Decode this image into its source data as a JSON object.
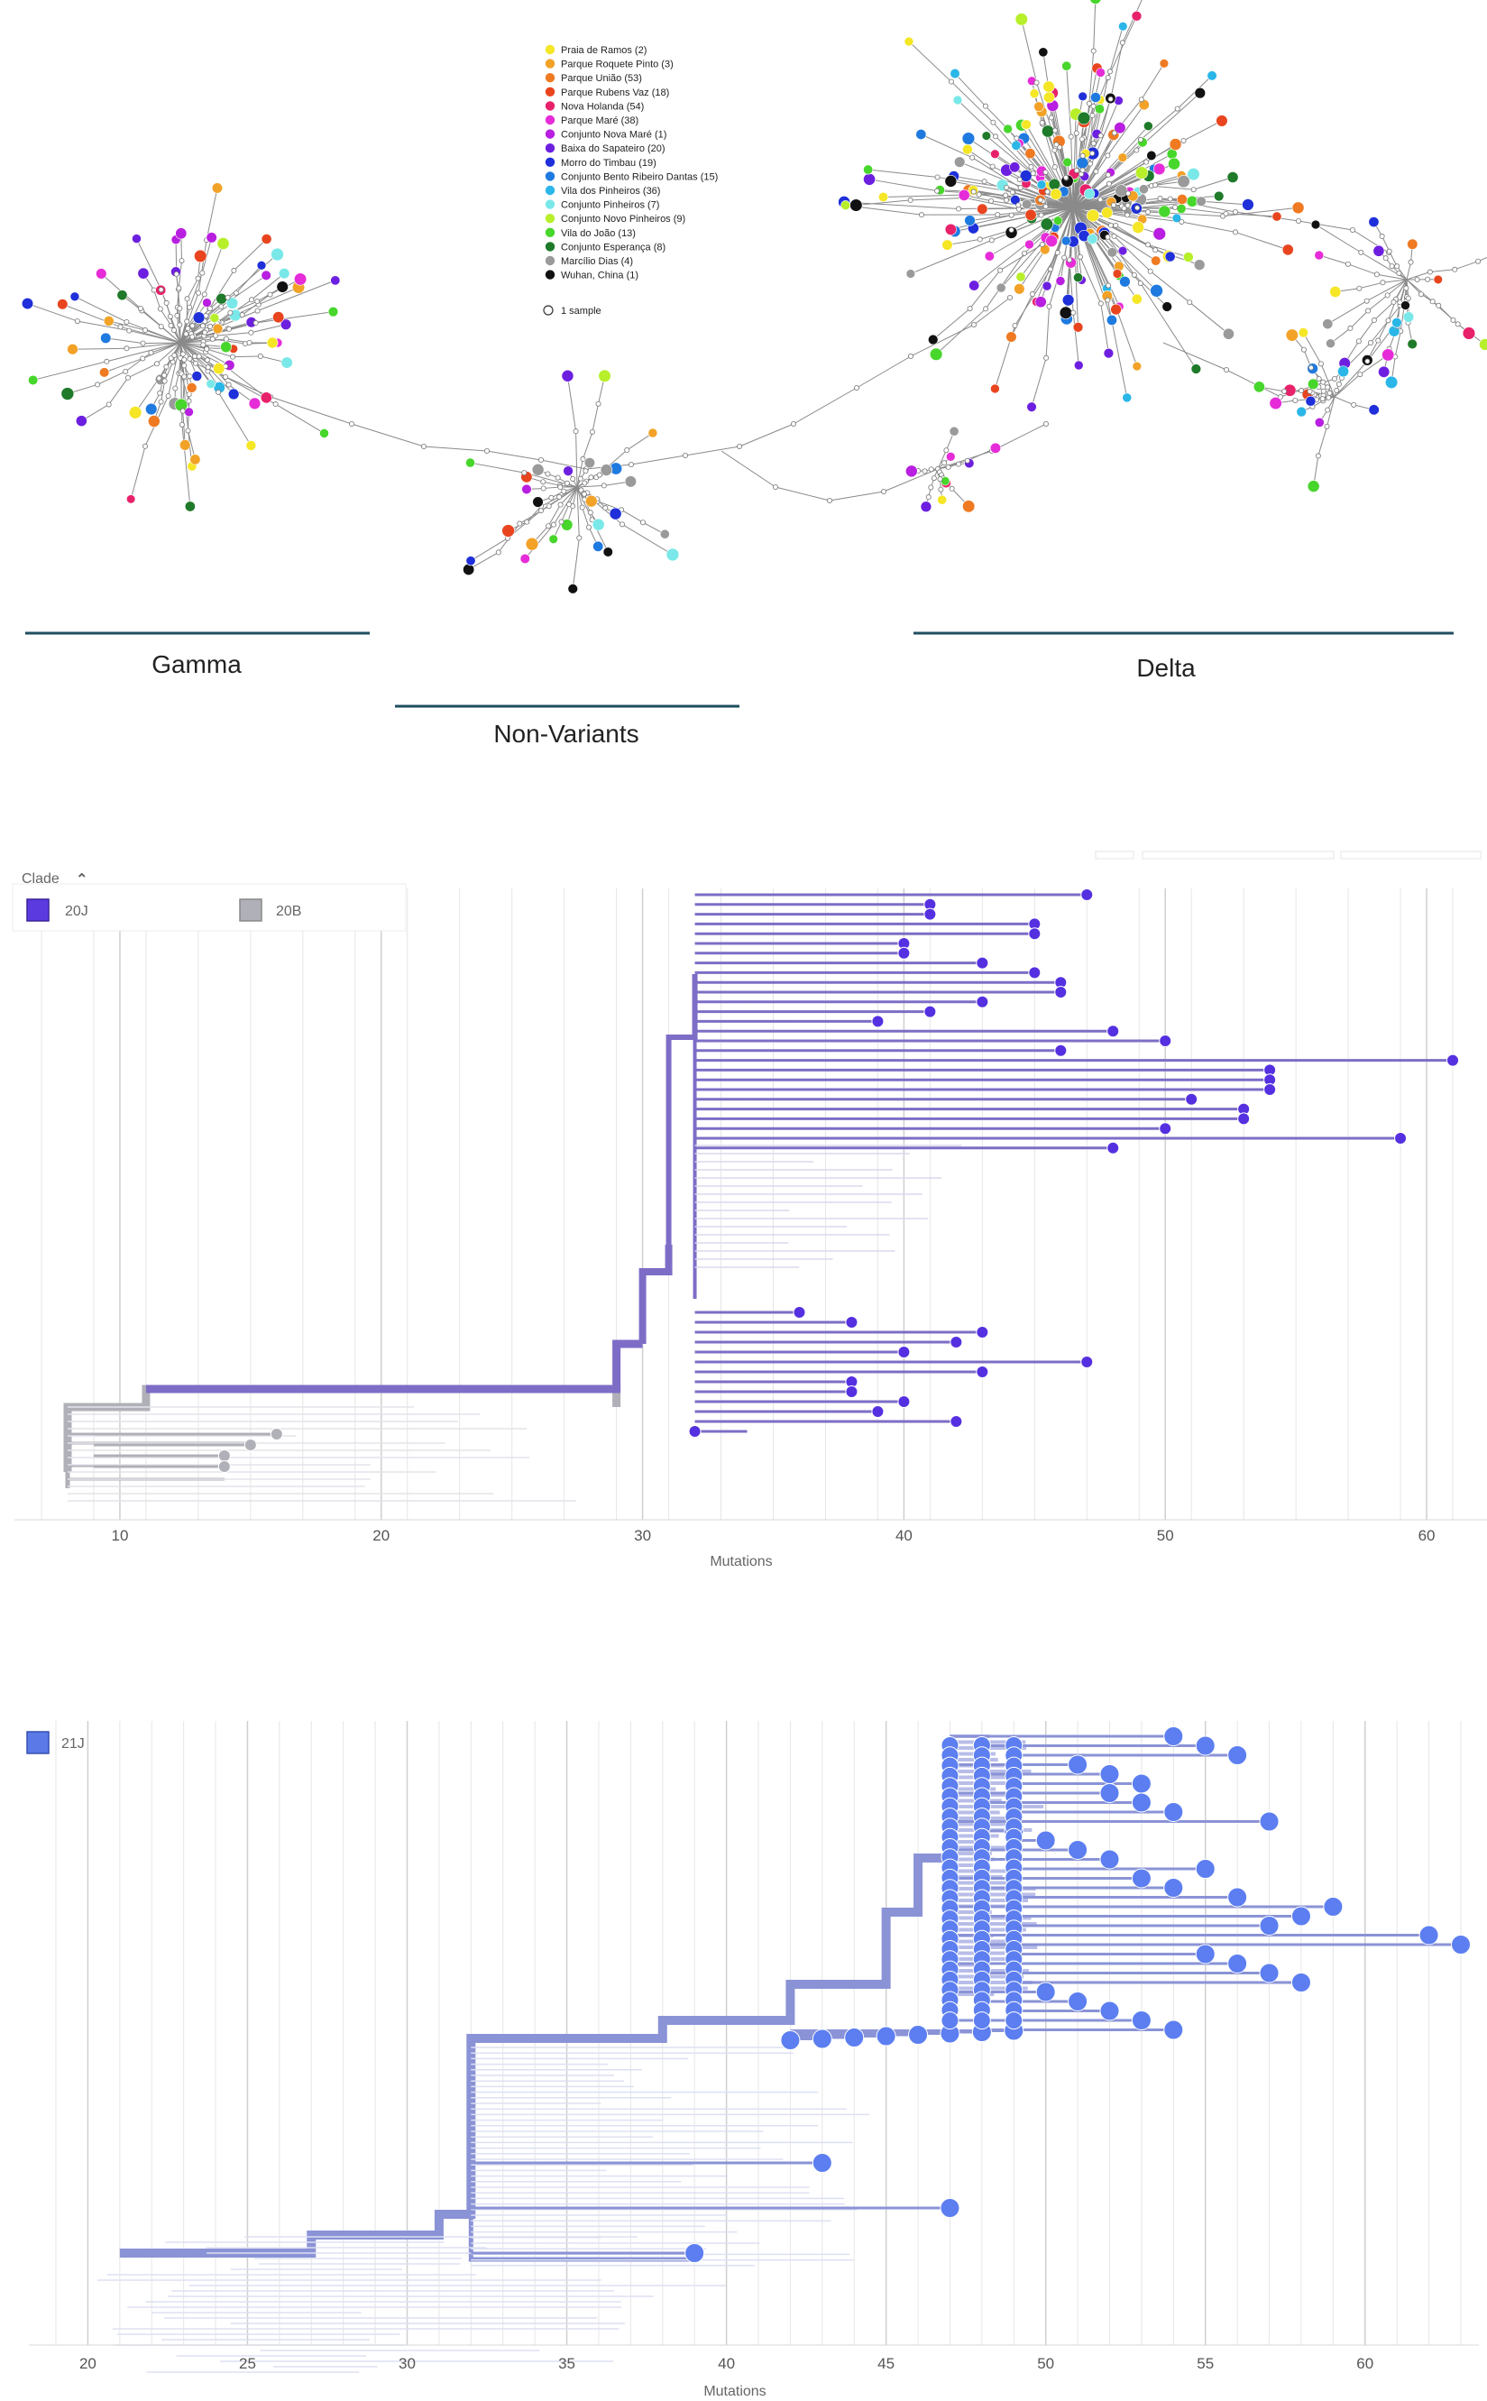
{
  "network": {
    "legend": [
      {
        "label": "Praia de Ramos (2)",
        "color": "#f5e626"
      },
      {
        "label": "Parque Roquete Pinto (3)",
        "color": "#f2a227"
      },
      {
        "label": "Parque União (53)",
        "color": "#ef7a22"
      },
      {
        "label": "Parque Rubens Vaz (18)",
        "color": "#e8451f"
      },
      {
        "label": "Nova Holanda (54)",
        "color": "#e8216b"
      },
      {
        "label": "Parque Maré (38)",
        "color": "#e62cd8"
      },
      {
        "label": "Conjunto Nova Maré (1)",
        "color": "#b81fe0"
      },
      {
        "label": "Baixa do Sapateiro (20)",
        "color": "#6d1fe0"
      },
      {
        "label": "Morro do Timbau (19)",
        "color": "#1f2fd9"
      },
      {
        "label": "Conjunto Bento Ribeiro Dantas (15)",
        "color": "#1f7ae0"
      },
      {
        "label": "Vila dos Pinheiros (36)",
        "color": "#2bb6e8"
      },
      {
        "label": "Conjunto Pinheiros (7)",
        "color": "#7ae8e8"
      },
      {
        "label": "Conjunto Novo Pinheiros (9)",
        "color": "#b7ef2a"
      },
      {
        "label": "Vila do João (13)",
        "color": "#47d62b"
      },
      {
        "label": "Conjunto Esperança (8)",
        "color": "#1f7a2a"
      },
      {
        "label": "Marcílio Dias (4)",
        "color": "#9a9a9a"
      },
      {
        "label": "Wuhan, China (1)",
        "color": "#111111"
      }
    ],
    "sample_key": "1 sample",
    "groups": {
      "gamma": "Gamma",
      "non_variants": "Non-Variants",
      "delta": "Delta"
    },
    "group_line_color": "#1f4e5f"
  },
  "tree1": {
    "legend_title": "Clade",
    "clades": [
      {
        "label": "20J",
        "color": "#5b3be0"
      },
      {
        "label": "20B",
        "color": "#b0b0b8"
      }
    ],
    "axis_label": "Mutations",
    "ticks": [
      "10",
      "20",
      "30",
      "40",
      "50",
      "60"
    ],
    "x_range": [
      7,
      62
    ],
    "tip_values": [
      47,
      41,
      41,
      45,
      45,
      40,
      40,
      43,
      45,
      46,
      46,
      43,
      41,
      39,
      48,
      50,
      46,
      61,
      54,
      54,
      54,
      51,
      53,
      53,
      50,
      59,
      48,
      36,
      38,
      43,
      42,
      40,
      47,
      43,
      38,
      38,
      40,
      39,
      42,
      32,
      16,
      15,
      14,
      14
    ],
    "branch_color": "#7e6dc6",
    "tip_color": "#5530e0"
  },
  "tree2": {
    "clades": [
      {
        "label": "21J",
        "color": "#5b7ae8"
      }
    ],
    "axis_label": "Mutations",
    "ticks": [
      "20",
      "25",
      "30",
      "35",
      "40",
      "45",
      "50",
      "55",
      "60"
    ],
    "x_range": [
      19,
      63
    ],
    "tip_values": [
      54,
      55,
      56,
      51,
      52,
      53,
      52,
      53,
      54,
      57,
      49,
      50,
      51,
      52,
      55,
      53,
      54,
      56,
      59,
      58,
      57,
      62,
      63,
      55,
      56,
      57,
      58,
      50,
      51,
      52,
      53,
      54,
      42,
      43,
      44,
      45,
      46,
      47,
      48,
      49,
      43,
      47,
      39
    ],
    "branch_color": "#8a93d6",
    "tip_color": "#5c7ef0"
  }
}
